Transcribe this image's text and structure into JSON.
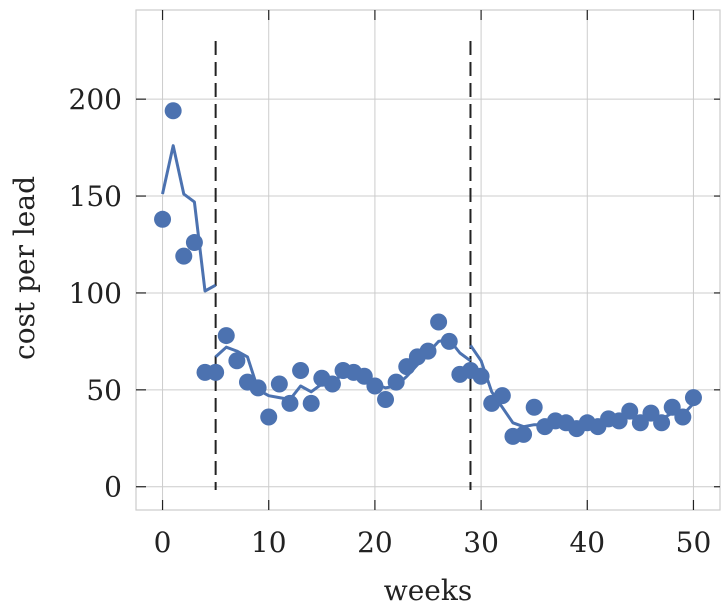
{
  "chart_data": {
    "type": "scatter",
    "title": "",
    "xlabel": "weeks",
    "ylabel": "cost per lead",
    "xlim": [
      -2.5,
      52.5
    ],
    "ylim": [
      -12,
      246
    ],
    "x_ticks": [
      0,
      10,
      20,
      30,
      40,
      50
    ],
    "y_ticks": [
      0,
      50,
      100,
      150,
      200
    ],
    "grid": true,
    "legend": "none",
    "vlines": [
      5,
      29
    ],
    "colors": {
      "series": "#4c72b0",
      "vline": "#222222",
      "grid": "#cccccc"
    },
    "series": [
      {
        "kind": "scatter",
        "x": [
          0,
          1,
          2,
          3,
          4,
          5,
          6,
          7,
          8,
          9,
          10,
          11,
          12,
          13,
          14,
          15,
          16,
          17,
          18,
          19,
          20,
          21,
          22,
          23,
          24,
          25,
          26,
          27,
          28,
          29,
          30,
          31,
          32,
          33,
          34,
          35,
          36,
          37,
          38,
          39,
          40,
          41,
          42,
          43,
          44,
          45,
          46,
          47,
          48,
          49,
          50
        ],
        "y": [
          138,
          194,
          119,
          126,
          59,
          59,
          78,
          65,
          54,
          51,
          36,
          53,
          43,
          60,
          43,
          56,
          53,
          60,
          59,
          57,
          52,
          45,
          54,
          62,
          67,
          70,
          85,
          75,
          58,
          60,
          57,
          43,
          47,
          26,
          27,
          41,
          31,
          34,
          33,
          30,
          33,
          31,
          35,
          34,
          39,
          33,
          38,
          33,
          41,
          36,
          46
        ]
      },
      {
        "kind": "line",
        "segments": [
          {
            "x": [
              0,
              1,
              2,
              3,
              4,
              5
            ],
            "y": [
              151,
              176,
              151,
              147,
              101,
              104
            ]
          },
          {
            "x": [
              5,
              6,
              7,
              8,
              9,
              10,
              11,
              12,
              13,
              14,
              15,
              16,
              17,
              18,
              19,
              20,
              21,
              22,
              23,
              24,
              25,
              26,
              27,
              28,
              29
            ],
            "y": [
              67,
              72,
              70,
              67,
              50,
              47,
              46,
              45,
              52,
              49,
              53,
              54,
              58,
              58,
              56,
              53,
              51,
              52,
              57,
              63,
              69,
              75,
              76,
              69,
              65
            ]
          },
          {
            "x": [
              29,
              30,
              31,
              32,
              33,
              34,
              35,
              36,
              37,
              38,
              39,
              40,
              41,
              42,
              43,
              44,
              45,
              46,
              47,
              48,
              49,
              50
            ],
            "y": [
              73,
              65,
              49,
              41,
              33,
              31,
              32,
              32,
              34,
              32,
              32,
              32,
              32,
              34,
              35,
              36,
              34,
              36,
              35,
              38,
              37,
              43
            ]
          }
        ]
      }
    ]
  }
}
